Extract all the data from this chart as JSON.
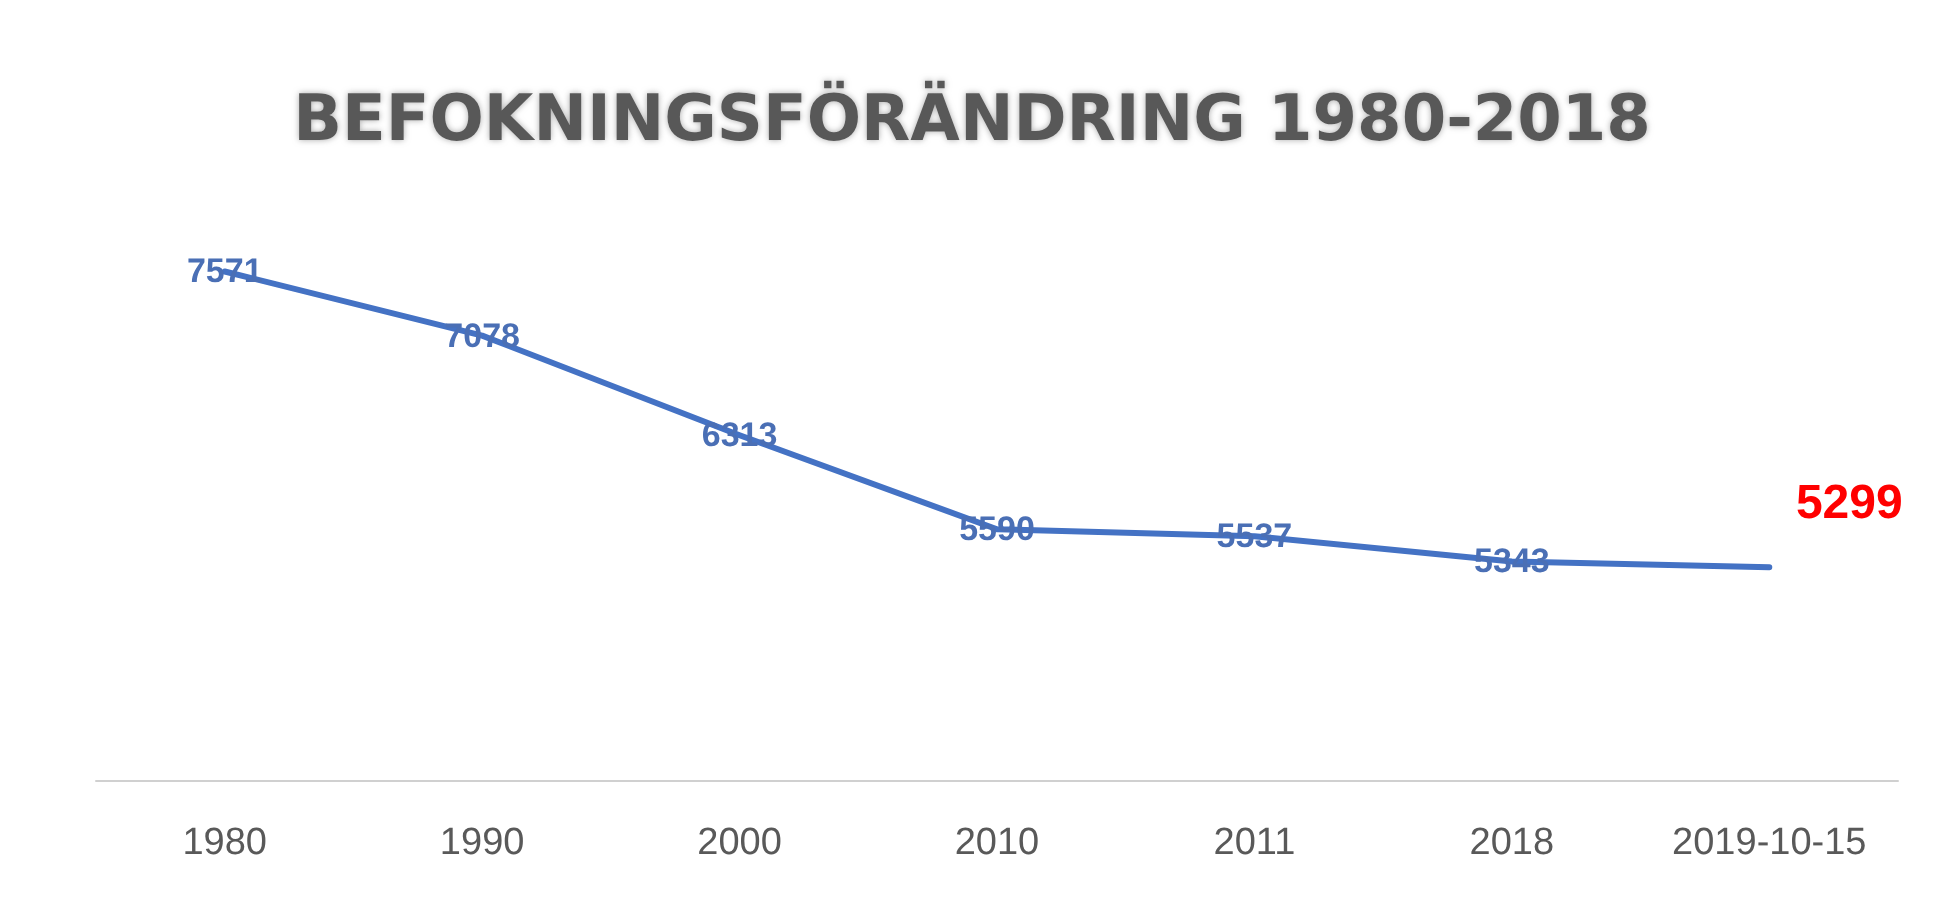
{
  "chart_data": {
    "type": "line",
    "title": "BEFOKNINGSFÖRÄNDRING 1980-2018",
    "categories": [
      "1980",
      "1990",
      "2000",
      "2010",
      "2011",
      "2018",
      "2019-10-15"
    ],
    "series": [
      {
        "color": "#4472c4",
        "values": [
          7571,
          7078,
          6313,
          5590,
          5537,
          5343,
          5299
        ],
        "value_labels": [
          "7571",
          "7078",
          "6313",
          "5590",
          "5537",
          "5343",
          null
        ]
      }
    ],
    "annotations": [
      {
        "text": "5299",
        "x": "2019-10-15",
        "y": 5299
      }
    ],
    "marker": "none",
    "tick_labels": "x"
  }
}
